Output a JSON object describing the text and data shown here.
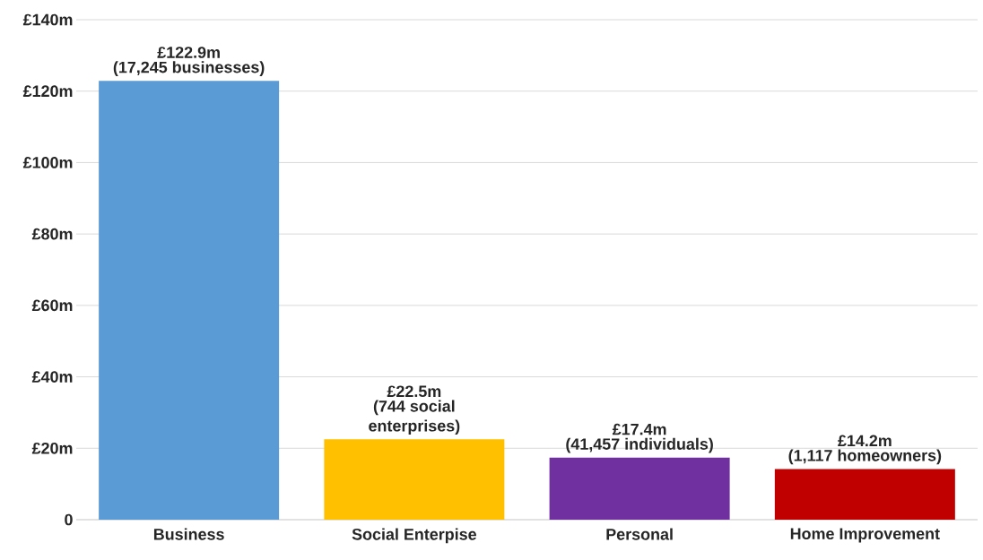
{
  "chart_data": {
    "type": "bar",
    "categories": [
      "Business",
      "Social Enterpise",
      "Personal",
      "Home Improvement"
    ],
    "values": [
      122.9,
      22.5,
      17.4,
      14.2
    ],
    "colors": [
      "#5b9bd5",
      "#ffc000",
      "#7030a0",
      "#c00000"
    ],
    "value_labels": [
      "£122.9m",
      "£22.5m",
      "£17.4m",
      "£14.2m"
    ],
    "annotations": [
      {
        "text": "(17,245 businesses)",
        "x": "Business",
        "y": 122.9
      },
      {
        "text": "(744 social enterprises)",
        "x": "Social Enterpise",
        "y": 22.5
      },
      {
        "text": "(41,457 individuals)",
        "x": "Personal",
        "y": 17.4
      },
      {
        "text": "(1,117 homeowners)",
        "x": "Home Improvement",
        "y": 14.2
      }
    ],
    "ylim": [
      0,
      140
    ],
    "yticks": [
      0,
      {
        "value": 20,
        "label": "£20m"
      },
      {
        "value": 40,
        "label": "£40m"
      },
      {
        "value": 60,
        "label": "£60m"
      },
      {
        "value": 80,
        "label": "£80m"
      },
      {
        "value": 100,
        "label": "£100m"
      },
      {
        "value": 120,
        "label": "£120m"
      },
      {
        "value": 140,
        "label": "£140m"
      }
    ],
    "grid": "y"
  }
}
